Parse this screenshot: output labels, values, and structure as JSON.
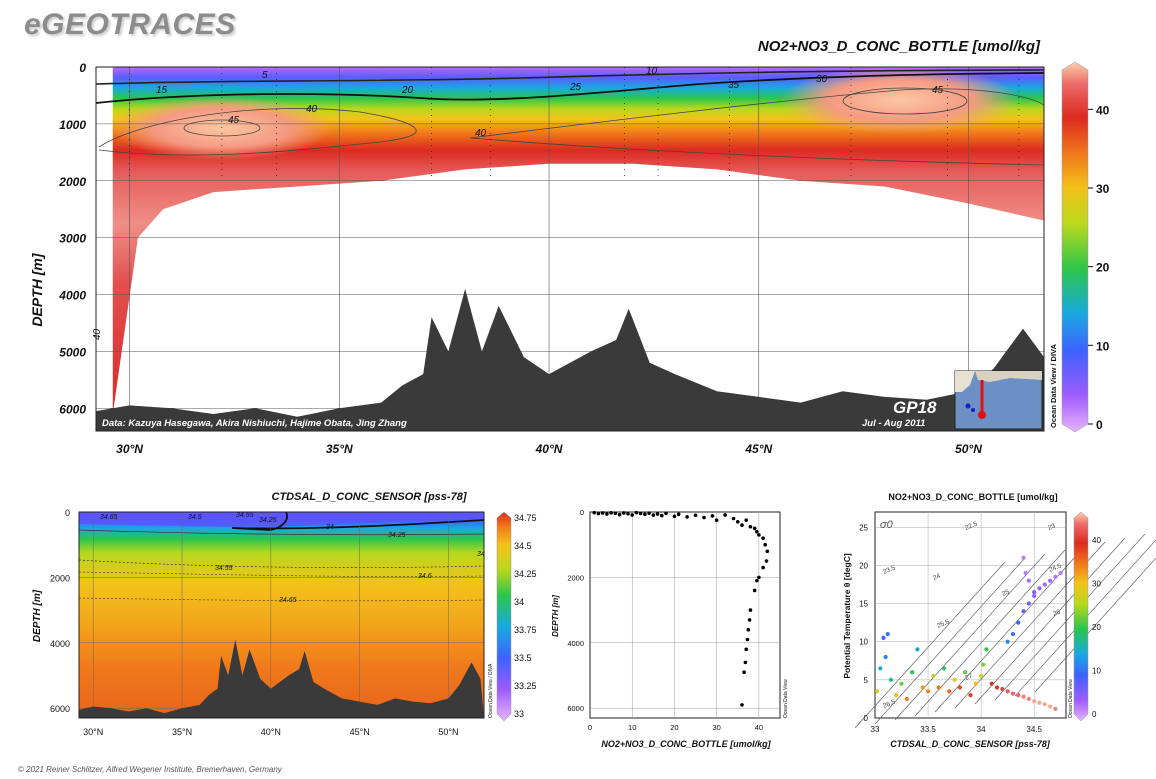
{
  "page": {
    "brand": "eGEOTRACES",
    "copyright": "© 2021 Reiner Schlitzer, Alfred Wegener Institute, Bremerhaven, Germany"
  },
  "colors": {
    "bathymetry": "#3a3a3a",
    "scale": [
      "#e6b3ff",
      "#9f5cff",
      "#3c62ff",
      "#1aa9e0",
      "#2bc54b",
      "#b8d81e",
      "#f3c21a",
      "#f07a1b",
      "#dc2a20",
      "#e8585a",
      "#f7b89a"
    ]
  },
  "main_section": {
    "title": "NO2+NO3_D_CONC_BOTTLE [umol/kg]",
    "ylabel": "DEPTH [m]",
    "yticks": [
      "0",
      "1000",
      "2000",
      "3000",
      "4000",
      "5000",
      "6000"
    ],
    "xticks": [
      "30°N",
      "35°N",
      "40°N",
      "45°N",
      "50°N"
    ],
    "contour_labels": [
      "5",
      "10",
      "15",
      "20",
      "25",
      "30",
      "35",
      "40",
      "40",
      "40",
      "45",
      "45"
    ],
    "credit": "Data: Kazuya Hasegawa, Akira Nishiuchi, Hajime Obata, Jing Zhang",
    "cruise": "GP18",
    "dates": "Jul - Aug 2011",
    "odv_label": "Ocean Data View / DIVA",
    "colorbar_ticks": [
      "0",
      "10",
      "20",
      "30",
      "40"
    ]
  },
  "salinity_section": {
    "title": "CTDSAL_D_CONC_SENSOR [pss-78]",
    "ylabel": "DEPTH [m]",
    "yticks": [
      "0",
      "2000",
      "4000",
      "6000"
    ],
    "xticks": [
      "30°N",
      "35°N",
      "40°N",
      "45°N",
      "50°N"
    ],
    "contour_labels": [
      "34.65",
      "34.5",
      "34.55",
      "34.25",
      "34",
      "34.25",
      "34.55",
      "34.6",
      "34.65",
      "34"
    ],
    "odv_label": "Ocean Data View / DIVA",
    "colorbar_ticks": [
      "34.75",
      "34.5",
      "34.25",
      "34",
      "33.75",
      "33.5",
      "33.25",
      "33"
    ]
  },
  "profile_plot": {
    "xlabel": "NO2+NO3_D_CONC_BOTTLE [umol/kg]",
    "ylabel": "DEPTH [m]",
    "xticks": [
      "0",
      "10",
      "20",
      "30",
      "40"
    ],
    "yticks": [
      "0",
      "2000",
      "4000",
      "6000"
    ],
    "odv_label": "Ocean Data View"
  },
  "ts_plot": {
    "title": "NO2+NO3_D_CONC_BOTTLE [umol/kg]",
    "xlabel": "CTDSAL_D_CONC_SENSOR [pss-78]",
    "ylabel": "Potential Temperature θ [degC]",
    "xticks": [
      "33",
      "33.5",
      "34",
      "34.5"
    ],
    "yticks": [
      "0",
      "5",
      "10",
      "15",
      "20",
      "25"
    ],
    "sigma_label": "σ0",
    "isopycnal_labels": [
      "22.5",
      "23",
      "23.5",
      "24",
      "24.5",
      "25",
      "25.5",
      "26",
      "26.5",
      "27"
    ],
    "odv_label": "Ocean Data View",
    "colorbar_ticks": [
      "0",
      "10",
      "20",
      "30",
      "40"
    ]
  },
  "chart_data": [
    {
      "type": "heatmap",
      "title": "NO2+NO3_D_CONC_BOTTLE [umol/kg]",
      "ylabel": "DEPTH [m]",
      "xlim": [
        29,
        52
      ],
      "ylim": [
        6400,
        0
      ],
      "colorbar_range": [
        0,
        45
      ],
      "contour_levels": [
        5,
        10,
        15,
        20,
        25,
        30,
        35,
        40,
        45
      ],
      "concentration_profile": {
        "depth": [
          0,
          100,
          200,
          300,
          500,
          700,
          1000,
          1500,
          2000
        ],
        "value": [
          2,
          8,
          15,
          22,
          32,
          38,
          44,
          42,
          41
        ]
      },
      "data_coverage_bottom_depth": {
        "lat": [
          29.6,
          30.2,
          30.8,
          32,
          33,
          34,
          36,
          38,
          40,
          42,
          44,
          46,
          48,
          50,
          51.8
        ],
        "depth": [
          6100,
          3000,
          2500,
          2200,
          2150,
          2100,
          2000,
          1800,
          1700,
          1700,
          1800,
          2000,
          2100,
          2400,
          2700
        ]
      },
      "bathymetry": {
        "lat": [
          29.2,
          30,
          31,
          32,
          33,
          34,
          35,
          36,
          36.5,
          37,
          37.2,
          37.6,
          38,
          38.4,
          38.8,
          39.4,
          40,
          41,
          41.6,
          41.9,
          42.4,
          43,
          44,
          45,
          46,
          47,
          48,
          49,
          50,
          50.6,
          51.3,
          51.8
        ],
        "depth": [
          6050,
          5950,
          6000,
          6100,
          6000,
          6150,
          6000,
          5900,
          5600,
          5400,
          4400,
          5000,
          3900,
          5000,
          4200,
          5100,
          5400,
          5000,
          4800,
          4250,
          5200,
          5400,
          5700,
          5800,
          5900,
          5700,
          5800,
          5850,
          5700,
          5300,
          4600,
          5100
        ]
      }
    },
    {
      "type": "heatmap",
      "title": "CTDSAL_D_CONC_SENSOR [pss-78]",
      "ylabel": "DEPTH [m]",
      "xlim": [
        29,
        52
      ],
      "ylim": [
        6300,
        0
      ],
      "colorbar_range": [
        33,
        34.75
      ],
      "contour_levels": [
        34,
        34.25,
        34.5,
        34.55,
        34.6,
        34.65
      ]
    },
    {
      "type": "scatter",
      "xlabel": "NO2+NO3_D_CONC_BOTTLE [umol/kg]",
      "ylabel": "DEPTH [m]",
      "xlim": [
        0,
        45
      ],
      "ylim": [
        6300,
        0
      ],
      "points": [
        [
          1,
          20
        ],
        [
          2,
          50
        ],
        [
          3,
          30
        ],
        [
          4,
          60
        ],
        [
          5,
          25
        ],
        [
          6,
          40
        ],
        [
          7,
          80
        ],
        [
          8,
          30
        ],
        [
          9,
          55
        ],
        [
          10,
          90
        ],
        [
          11,
          20
        ],
        [
          12,
          45
        ],
        [
          13,
          70
        ],
        [
          14,
          35
        ],
        [
          15,
          95
        ],
        [
          16,
          60
        ],
        [
          17,
          110
        ],
        [
          18,
          40
        ],
        [
          20,
          130
        ],
        [
          21,
          70
        ],
        [
          23,
          150
        ],
        [
          25,
          100
        ],
        [
          27,
          170
        ],
        [
          29,
          120
        ],
        [
          30,
          250
        ],
        [
          32,
          90
        ],
        [
          34,
          200
        ],
        [
          35,
          300
        ],
        [
          36,
          400
        ],
        [
          37,
          250
        ],
        [
          38,
          450
        ],
        [
          39,
          500
        ],
        [
          39.5,
          600
        ],
        [
          40,
          700
        ],
        [
          41,
          800
        ],
        [
          41.5,
          1000
        ],
        [
          42,
          1200
        ],
        [
          41.8,
          1500
        ],
        [
          41,
          1700
        ],
        [
          40,
          2000
        ],
        [
          39.5,
          2100
        ],
        [
          39,
          2400
        ],
        [
          38,
          3000
        ],
        [
          37.8,
          3300
        ],
        [
          37.5,
          3600
        ],
        [
          37.3,
          3900
        ],
        [
          37,
          4200
        ],
        [
          36.8,
          4600
        ],
        [
          36.5,
          4900
        ],
        [
          36,
          5900
        ]
      ]
    },
    {
      "type": "scatter",
      "xlabel": "CTDSAL_D_CONC_SENSOR [pss-78]",
      "ylabel": "Potential Temperature θ [degC]",
      "xlim": [
        33,
        34.8
      ],
      "ylim": [
        0,
        27
      ],
      "color_variable": "NO2+NO3_D_CONC_BOTTLE [umol/kg]",
      "points": [
        [
          33.02,
          3.5,
          28
        ],
        [
          33.05,
          6.5,
          15
        ],
        [
          33.08,
          10.5,
          10
        ],
        [
          33.1,
          8,
          12
        ],
        [
          33.12,
          11,
          11
        ],
        [
          33.15,
          5,
          18
        ],
        [
          33.2,
          3,
          30
        ],
        [
          33.25,
          4.5,
          22
        ],
        [
          33.3,
          2.5,
          34
        ],
        [
          33.35,
          6,
          20
        ],
        [
          33.4,
          9,
          14
        ],
        [
          33.45,
          4,
          32
        ],
        [
          33.5,
          3.5,
          33
        ],
        [
          33.55,
          5.5,
          25
        ],
        [
          33.6,
          4,
          34
        ],
        [
          33.65,
          6.5,
          19
        ],
        [
          33.7,
          3.5,
          35
        ],
        [
          33.75,
          5,
          28
        ],
        [
          33.8,
          4,
          36
        ],
        [
          33.85,
          6,
          22
        ],
        [
          33.9,
          3,
          37
        ],
        [
          33.95,
          4.5,
          30
        ],
        [
          34.0,
          5.5,
          26
        ],
        [
          34.02,
          7,
          23
        ],
        [
          34.05,
          9,
          20
        ],
        [
          34.1,
          4.5,
          38
        ],
        [
          34.15,
          4,
          39
        ],
        [
          34.2,
          3.8,
          40
        ],
        [
          34.25,
          3.5,
          41
        ],
        [
          34.3,
          3.2,
          42
        ],
        [
          34.35,
          3,
          42
        ],
        [
          34.4,
          2.8,
          43
        ],
        [
          34.45,
          2.5,
          43
        ],
        [
          34.5,
          2.2,
          44
        ],
        [
          34.55,
          2,
          44
        ],
        [
          34.6,
          1.8,
          44
        ],
        [
          34.65,
          1.5,
          44
        ],
        [
          34.7,
          1.2,
          43
        ],
        [
          34.25,
          10,
          12
        ],
        [
          34.3,
          11,
          11
        ],
        [
          34.35,
          12.5,
          10
        ],
        [
          34.4,
          14,
          8
        ],
        [
          34.45,
          15,
          7
        ],
        [
          34.5,
          16.5,
          6
        ],
        [
          34.55,
          17,
          5
        ],
        [
          34.6,
          17.5,
          4
        ],
        [
          34.65,
          18,
          4
        ],
        [
          34.4,
          21,
          3
        ],
        [
          34.42,
          19,
          3
        ],
        [
          34.45,
          18,
          4
        ],
        [
          34.5,
          16,
          5
        ],
        [
          34.7,
          18.5,
          3
        ],
        [
          34.75,
          19,
          3
        ]
      ]
    }
  ]
}
